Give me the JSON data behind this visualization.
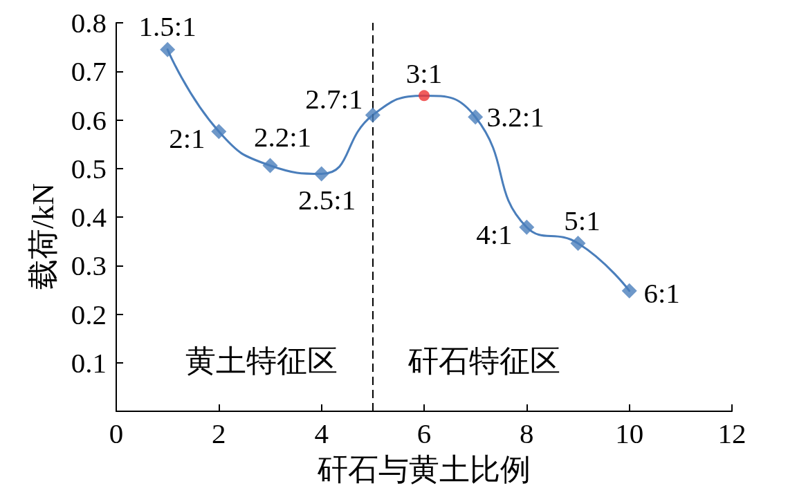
{
  "chart_data": {
    "type": "line",
    "xlabel": "矸石与黄土比例",
    "ylabel": "载荷/kN",
    "xlim": [
      0,
      12
    ],
    "xticks": [
      0,
      2,
      4,
      6,
      8,
      10,
      12
    ],
    "ylim": [
      0,
      0.8
    ],
    "yticks": [
      0.1,
      0.2,
      0.3,
      0.4,
      0.5,
      0.6,
      0.7,
      0.8
    ],
    "line_style": "solid",
    "series": [
      {
        "color": "#4a7ebb",
        "marker": "none",
        "x": [
          1,
          2,
          3,
          4,
          5,
          6,
          7,
          8,
          9,
          10
        ],
        "values": [
          0.745,
          0.576,
          0.506,
          0.489,
          0.61,
          0.65,
          0.606,
          0.379,
          0.346,
          0.248
        ]
      },
      {
        "type": "scatter",
        "color": "#4a7ebb",
        "marker": "diamond",
        "x": [
          1,
          2,
          3,
          4,
          5,
          7,
          8,
          9,
          10
        ],
        "values": [
          0.745,
          0.576,
          0.506,
          0.489,
          0.61,
          0.606,
          0.379,
          0.346,
          0.248
        ]
      },
      {
        "type": "scatter",
        "color": "#ee3333",
        "marker": "circle",
        "x": [
          6
        ],
        "values": [
          0.65
        ]
      }
    ],
    "ref_lines": [
      {
        "axis": "x",
        "value": 5,
        "color": "#000000",
        "line_style": "dashed"
      }
    ],
    "annotations": [
      {
        "text": "1.5:1",
        "x": 1,
        "y": 0.745
      },
      {
        "text": "2:1",
        "x": 2,
        "y": 0.576
      },
      {
        "text": "2.2:1",
        "x": 3,
        "y": 0.506
      },
      {
        "text": "2.5:1",
        "x": 4,
        "y": 0.489
      },
      {
        "text": "2.7:1",
        "x": 5,
        "y": 0.61
      },
      {
        "text": "3:1",
        "x": 6,
        "y": 0.65
      },
      {
        "text": "3.2:1",
        "x": 7,
        "y": 0.606
      },
      {
        "text": "4:1",
        "x": 8,
        "y": 0.379
      },
      {
        "text": "5:1",
        "x": 9,
        "y": 0.346
      },
      {
        "text": "6:1",
        "x": 10,
        "y": 0.248
      },
      "黄土特征区",
      "矸石特征区"
    ]
  }
}
